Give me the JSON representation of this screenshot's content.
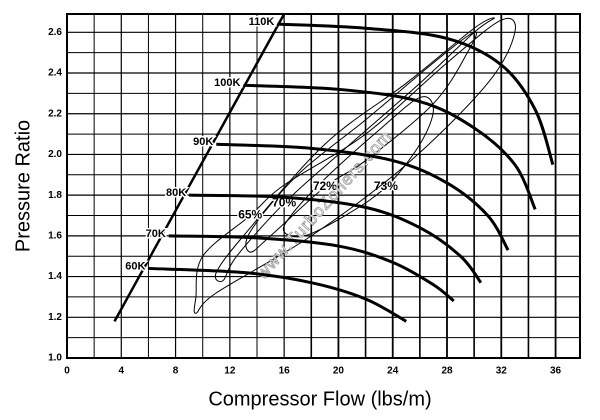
{
  "chart_data": {
    "type": "line",
    "x_label": "Compressor Flow (lbs/m)",
    "y_label": "Pressure Ratio",
    "watermark": "www.TurboZoners.com",
    "xlim": [
      0,
      37.8
    ],
    "ylim": [
      1.0,
      2.69
    ],
    "xticks": [
      0,
      4,
      8,
      12,
      16,
      20,
      24,
      28,
      32,
      36
    ],
    "yticks": [
      {
        "value": 1.0,
        "label": "1.0"
      },
      1.2,
      1.4,
      1.6,
      1.8,
      {
        "value": 2.0,
        "label": "2.0"
      },
      2.2,
      2.4,
      2.6
    ],
    "x_minor_ticks": [
      2,
      6,
      10,
      14,
      18,
      22,
      26,
      30,
      34
    ],
    "y_minor_ticks": [
      1.1,
      1.3,
      1.5,
      1.7,
      1.9,
      2.1,
      2.3,
      2.5
    ],
    "grid": true,
    "color": "#000000",
    "surge_line": {
      "x": [
        3.5,
        16
      ],
      "values": [
        1.18,
        2.69
      ]
    },
    "series": [
      {
        "name": "60K",
        "x": [
          6,
          13,
          18,
          22,
          25
        ],
        "values": [
          1.44,
          1.42,
          1.37,
          1.29,
          1.18
        ]
      },
      {
        "name": "70K",
        "x": [
          7.5,
          14,
          20,
          24,
          27,
          28.5
        ],
        "values": [
          1.6,
          1.59,
          1.55,
          1.47,
          1.36,
          1.28
        ]
      },
      {
        "name": "80K",
        "x": [
          9,
          16,
          22,
          26,
          29,
          30.5
        ],
        "values": [
          1.8,
          1.79,
          1.74,
          1.64,
          1.5,
          1.37
        ]
      },
      {
        "name": "90K",
        "x": [
          11,
          18,
          24,
          28,
          31,
          32.5
        ],
        "values": [
          2.05,
          2.03,
          1.97,
          1.86,
          1.7,
          1.53
        ]
      },
      {
        "name": "100K",
        "x": [
          13,
          20,
          26,
          30,
          33,
          34.5
        ],
        "values": [
          2.34,
          2.32,
          2.26,
          2.13,
          1.95,
          1.73
        ]
      },
      {
        "name": "110K",
        "x": [
          15.5,
          22,
          28,
          32,
          34.5,
          35.8
        ],
        "values": [
          2.64,
          2.62,
          2.57,
          2.44,
          2.22,
          1.95
        ]
      }
    ],
    "efficiency_islands": [
      {
        "label": "73%",
        "x": [
          23.5,
          26,
          27,
          26,
          23,
          19,
          16.5,
          16,
          17.5,
          20.5
        ],
        "values": [
          1.84,
          2.05,
          2.22,
          2.28,
          2.12,
          1.88,
          1.7,
          1.62,
          1.6,
          1.7
        ]
      },
      {
        "label": "72%",
        "x": [
          19,
          22,
          27,
          29.5,
          30,
          27,
          22,
          17,
          13.5,
          13.5,
          15
        ],
        "values": [
          1.84,
          1.97,
          2.25,
          2.5,
          2.6,
          2.45,
          2.17,
          1.9,
          1.62,
          1.52,
          1.6
        ]
      },
      {
        "label": "70%",
        "x": [
          16,
          20,
          26,
          30,
          31.5,
          30,
          25,
          19,
          13,
          11,
          11.5,
          12.5
        ],
        "values": [
          1.76,
          2.0,
          2.35,
          2.6,
          2.67,
          2.62,
          2.35,
          2.05,
          1.6,
          1.42,
          1.38,
          1.5
        ]
      },
      {
        "label": "65%",
        "x": [
          13.5,
          16,
          22,
          28,
          32,
          33,
          31,
          25,
          18,
          11,
          9.5,
          9.5,
          10
        ],
        "values": [
          1.7,
          1.85,
          2.1,
          2.45,
          2.66,
          2.6,
          2.35,
          1.95,
          1.6,
          1.32,
          1.22,
          1.3,
          1.5
        ]
      }
    ]
  }
}
